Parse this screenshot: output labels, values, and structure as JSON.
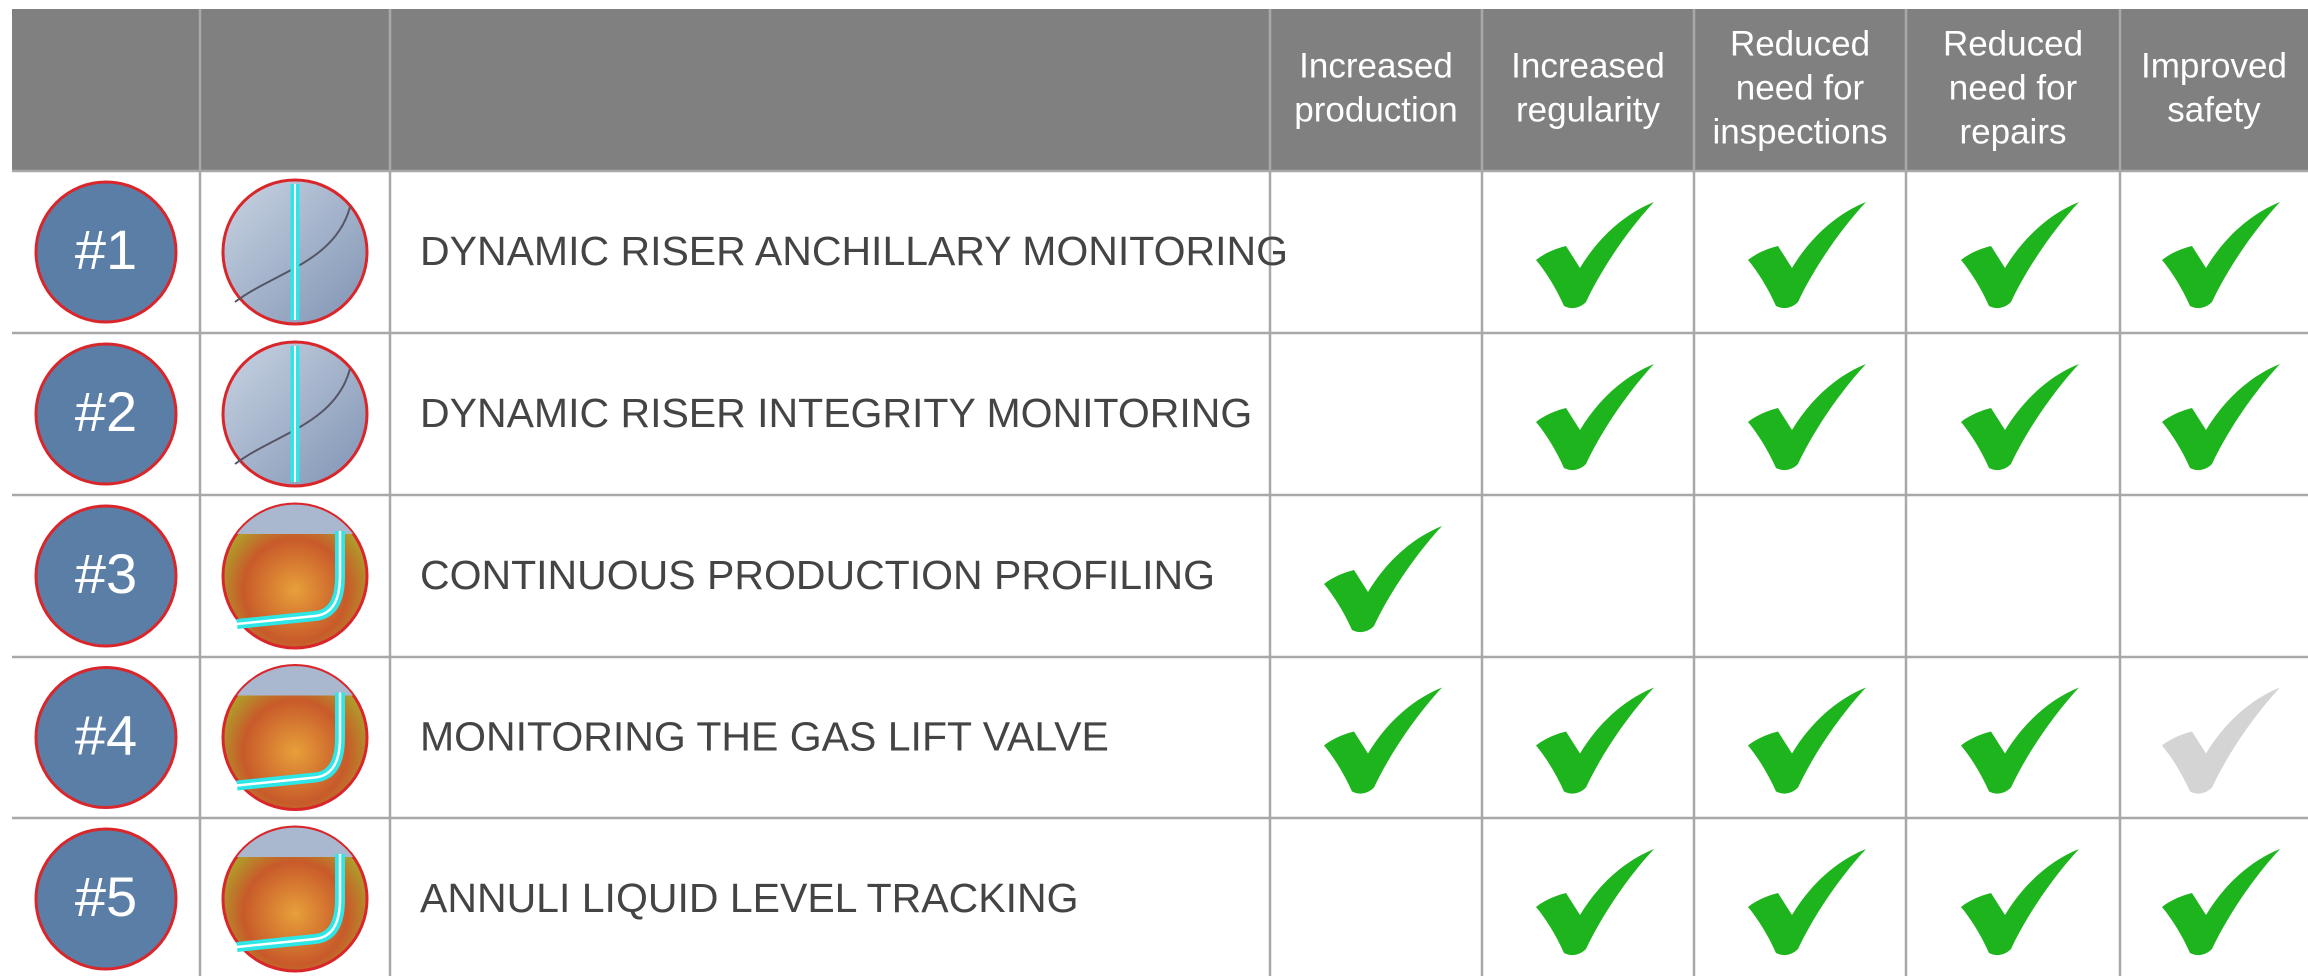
{
  "header": {
    "columns": [
      [
        "Increased",
        "production"
      ],
      [
        "Increased",
        "regularity"
      ],
      [
        "Reduced",
        "need for",
        "inspections"
      ],
      [
        "Reduced",
        "need for",
        "repairs"
      ],
      [
        "Improved",
        "safety"
      ]
    ]
  },
  "table": {
    "rows": [
      {
        "number": "#1",
        "title": "DYNAMIC RISER ANCHILLARY MONITORING",
        "checks": [
          null,
          "#1db41d",
          "#1db41d",
          "#1db41d",
          "#1db41d"
        ]
      },
      {
        "number": "#2",
        "title": "DYNAMIC RISER INTEGRITY MONITORING",
        "checks": [
          null,
          "#1db41d",
          "#1db41d",
          "#1db41d",
          "#1db41d"
        ]
      },
      {
        "number": "#3",
        "title": "CONTINUOUS PRODUCTION PROFILING",
        "checks": [
          "#1db41d",
          null,
          null,
          null,
          null
        ]
      },
      {
        "number": "#4",
        "title": "MONITORING THE GAS LIFT VALVE",
        "checks": [
          "#1db41d",
          "#1db41d",
          "#1db41d",
          "#1db41d",
          "#d4d4d4"
        ]
      },
      {
        "number": "#5",
        "title": "ANNULI LIQUID LEVEL TRACKING",
        "checks": [
          null,
          "#1db41d",
          "#1db41d",
          "#1db41d",
          "#1db41d"
        ]
      }
    ]
  }
}
